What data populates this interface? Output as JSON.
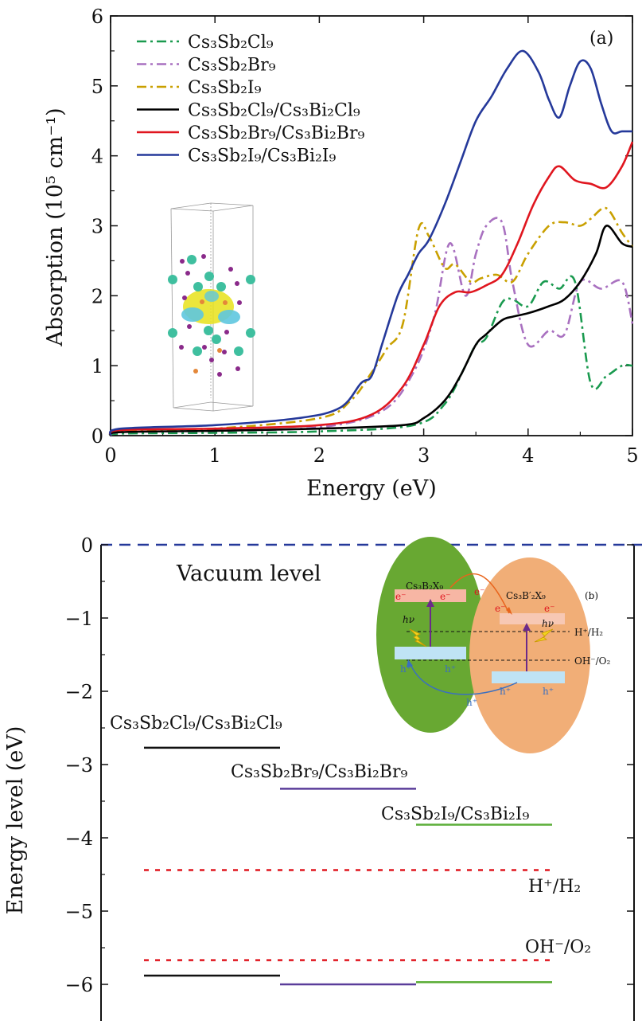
{
  "chart_data": [
    {
      "type": "line",
      "panel_label": "(a)",
      "xlabel": "Energy (eV)",
      "ylabel": "Absorption (10⁵ cm⁻¹)",
      "xlim": [
        0,
        5
      ],
      "ylim": [
        0,
        6
      ],
      "xticks": [
        "0",
        "1",
        "2",
        "3",
        "4",
        "5"
      ],
      "yticks": [
        "0",
        "1",
        "2",
        "3",
        "4",
        "5",
        "6"
      ],
      "legend_position": "top-left",
      "series": [
        {
          "name": "Cs₃Sb₂Cl₉",
          "color": "#1a9a4f",
          "dash": "dash-dot",
          "x": [
            0,
            0.1,
            1,
            2,
            2.9,
            3.2,
            3.4,
            3.5,
            3.6,
            3.75,
            3.85,
            4.0,
            4.15,
            4.3,
            4.45,
            4.6,
            4.75,
            4.9,
            5.0
          ],
          "y": [
            0,
            0.03,
            0.04,
            0.06,
            0.15,
            0.45,
            1.0,
            1.3,
            1.4,
            1.9,
            1.95,
            1.85,
            2.2,
            2.1,
            2.2,
            0.75,
            0.85,
            1.0,
            1.0
          ]
        },
        {
          "name": "Cs₃Sb₂Br₉",
          "color": "#a971c0",
          "dash": "dash-dot",
          "x": [
            0,
            0.1,
            1,
            2,
            2.6,
            2.9,
            3.1,
            3.25,
            3.4,
            3.5,
            3.6,
            3.75,
            3.85,
            4.0,
            4.2,
            4.35,
            4.5,
            4.7,
            4.9,
            5.0
          ],
          "y": [
            0,
            0.05,
            0.07,
            0.12,
            0.35,
            0.9,
            1.7,
            2.75,
            2.0,
            2.6,
            3.0,
            3.05,
            2.2,
            1.3,
            1.5,
            1.45,
            2.2,
            2.1,
            2.2,
            1.6
          ]
        },
        {
          "name": "Cs₃Sb₂I₉",
          "color": "#c9a000",
          "dash": "dash-dot",
          "x": [
            0,
            0.1,
            1,
            2,
            2.3,
            2.5,
            2.65,
            2.8,
            2.95,
            3.05,
            3.2,
            3.3,
            3.45,
            3.55,
            3.7,
            3.85,
            4.0,
            4.2,
            4.35,
            4.5,
            4.6,
            4.75,
            4.9,
            5.0
          ],
          "y": [
            0,
            0.06,
            0.1,
            0.25,
            0.5,
            0.9,
            1.25,
            1.6,
            2.95,
            2.85,
            2.4,
            2.45,
            2.2,
            2.25,
            2.3,
            2.2,
            2.6,
            3.0,
            3.05,
            3.0,
            3.1,
            3.25,
            2.9,
            2.7
          ]
        },
        {
          "name": "Cs₃Sb₂Cl₉/Cs₃Bi₂Cl₉",
          "color": "#000000",
          "dash": "solid",
          "x": [
            0,
            0.1,
            1,
            2,
            2.8,
            3.0,
            3.2,
            3.35,
            3.5,
            3.6,
            3.75,
            3.85,
            4.0,
            4.2,
            4.35,
            4.5,
            4.65,
            4.75,
            4.9,
            5.0
          ],
          "y": [
            0,
            0.05,
            0.07,
            0.1,
            0.15,
            0.25,
            0.5,
            0.85,
            1.3,
            1.45,
            1.65,
            1.7,
            1.75,
            1.85,
            1.95,
            2.2,
            2.6,
            3.0,
            2.75,
            2.7
          ]
        },
        {
          "name": "Cs₃Sb₂Br₉/Cs₃Bi₂Br₉",
          "color": "#e0161f",
          "dash": "solid",
          "x": [
            0,
            0.1,
            1,
            2,
            2.5,
            2.8,
            3.0,
            3.15,
            3.3,
            3.45,
            3.6,
            3.75,
            3.9,
            4.05,
            4.2,
            4.3,
            4.45,
            4.6,
            4.75,
            4.9,
            5.0
          ],
          "y": [
            0,
            0.08,
            0.1,
            0.15,
            0.3,
            0.7,
            1.3,
            1.85,
            2.05,
            2.05,
            2.15,
            2.3,
            2.75,
            3.3,
            3.7,
            3.85,
            3.65,
            3.6,
            3.55,
            3.85,
            4.2
          ]
        },
        {
          "name": "Cs₃Sb₂I₉/Cs₃Bi₂I₉",
          "color": "#25399a",
          "dash": "solid",
          "x": [
            0,
            0.1,
            1,
            1.8,
            2.2,
            2.4,
            2.5,
            2.6,
            2.75,
            2.85,
            2.95,
            3.05,
            3.2,
            3.35,
            3.5,
            3.65,
            3.8,
            3.95,
            4.1,
            4.2,
            4.3,
            4.4,
            4.5,
            4.6,
            4.7,
            4.8,
            4.9,
            5.0
          ],
          "y": [
            0,
            0.1,
            0.15,
            0.25,
            0.4,
            0.75,
            0.85,
            1.3,
            2.0,
            2.3,
            2.6,
            2.8,
            3.3,
            3.9,
            4.5,
            4.85,
            5.25,
            5.5,
            5.2,
            4.8,
            4.55,
            5.0,
            5.35,
            5.25,
            4.75,
            4.35,
            4.35,
            4.35
          ]
        }
      ]
    },
    {
      "type": "diagram",
      "panel_label": "(b)",
      "ylabel": "Energy level (eV)",
      "ylim": [
        -6.5,
        0
      ],
      "yticks": [
        "0",
        "−1",
        "−2",
        "−3",
        "−4",
        "−5",
        "−6"
      ],
      "vacuum_label": "Vacuum level",
      "levels": [
        {
          "name": "Cs₃Sb₂Cl₉/Cs₃Bi₂Cl₉",
          "color": "#111111",
          "cb": -2.77,
          "vb": -5.88
        },
        {
          "name": "Cs₃Sb₂Br₉/Cs₃Bi₂Br₉",
          "color": "#5a3d9a",
          "cb": -3.33,
          "vb": -6.0
        },
        {
          "name": "Cs₃Sb₂I₉/Cs₃Bi₂I₉",
          "color": "#5cae38",
          "cb": -3.82,
          "vb": -5.97
        }
      ],
      "redox": [
        {
          "name": "H⁺/H₂",
          "value": -4.44
        },
        {
          "name": "OH⁻/O₂",
          "value": -5.67
        }
      ],
      "inset": {
        "left_label": "Cs₃B₂X₉",
        "right_label": "Cs₃B′₂X₉",
        "electron": "e⁻",
        "hole": "h⁺",
        "hv": "hν",
        "h_redox": "H⁺/H₂",
        "o_redox": "OH⁻/O₂"
      }
    }
  ]
}
